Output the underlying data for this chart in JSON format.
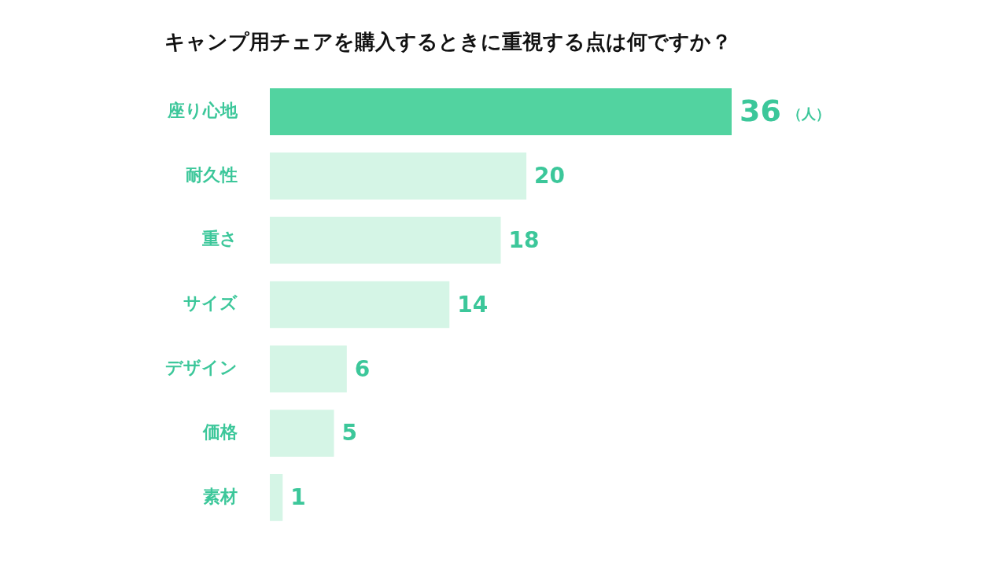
{
  "chart_data": {
    "type": "bar",
    "orientation": "horizontal",
    "title": "キャンプ用チェアを購入するときに重視する点は何ですか？",
    "categories": [
      "座り心地",
      "耐久性",
      "重さ",
      "サイズ",
      "デザイン",
      "価格",
      "素材"
    ],
    "values": [
      36,
      20,
      18,
      14,
      6,
      5,
      1
    ],
    "colors": [
      "#52d3a0",
      "#d5f5e6",
      "#d5f5e6",
      "#d5f5e6",
      "#d5f5e6",
      "#d5f5e6",
      "#d5f5e6"
    ],
    "data_labels": true,
    "legend": false,
    "annotations": [
      "（人）"
    ]
  }
}
